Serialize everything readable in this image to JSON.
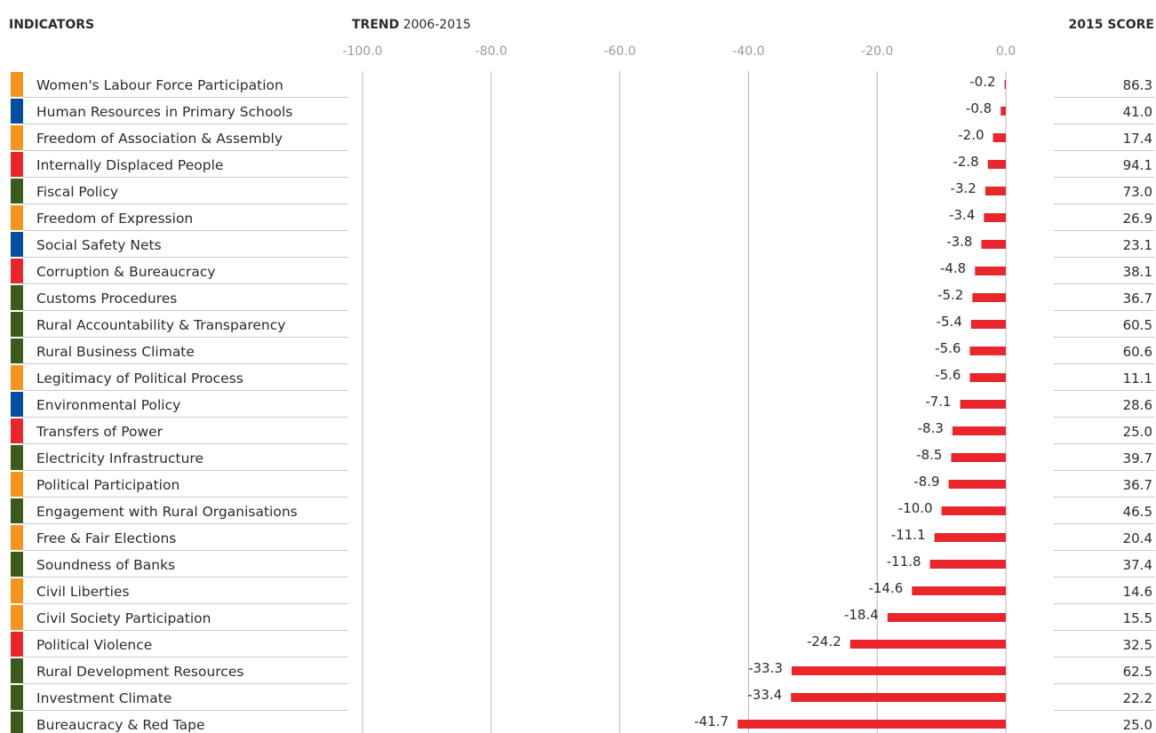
{
  "header": {
    "indicators": "INDICATORS",
    "trend_bold": "TREND",
    "trend_range": "2006-2015",
    "score": "2015 SCORE"
  },
  "colors": {
    "bar": "#e8262b",
    "grid": "#b8b8b8",
    "rowline": "#c8c8c8",
    "category": {
      "orange": "#f7941d",
      "blue": "#034ea2",
      "red": "#e8262b",
      "green": "#3b5a1b"
    }
  },
  "chart_data": {
    "type": "bar",
    "orientation": "horizontal",
    "xlim": [
      -100,
      0
    ],
    "xticks": [
      "-100.0",
      "-80.0",
      "-60.0",
      "-40.0",
      "-20.0",
      "0.0"
    ],
    "grid": true,
    "categories": [
      "Women's Labour Force Participation",
      "Human Resources in Primary Schools",
      "Freedom of Association & Assembly",
      "Internally Displaced People",
      "Fiscal Policy",
      "Freedom of Expression",
      "Social Safety Nets",
      "Corruption & Bureaucracy",
      "Customs Procedures",
      "Rural Accountability & Transparency",
      "Rural Business Climate",
      "Legitimacy of Political Process",
      "Environmental Policy",
      "Transfers of Power",
      "Electricity Infrastructure",
      "Political Participation",
      "Engagement with Rural Organisations",
      "Free & Fair Elections",
      "Soundness of Banks",
      "Civil Liberties",
      "Civil Society Participation",
      "Political Violence",
      "Rural Development Resources",
      "Investment Climate",
      "Bureaucracy & Red Tape"
    ],
    "values": [
      -0.2,
      -0.8,
      -2.0,
      -2.8,
      -3.2,
      -3.4,
      -3.8,
      -4.8,
      -5.2,
      -5.4,
      -5.6,
      -5.6,
      -7.1,
      -8.3,
      -8.5,
      -8.9,
      -10.0,
      -11.1,
      -11.8,
      -14.6,
      -18.4,
      -24.2,
      -33.3,
      -33.4,
      -41.7
    ],
    "value_labels": [
      "-0.2",
      "-0.8",
      "-2.0",
      "-2.8",
      "-3.2",
      "-3.4",
      "-3.8",
      "-4.8",
      "-5.2",
      "-5.4",
      "-5.6",
      "-5.6",
      "-7.1",
      "-8.3",
      "-8.5",
      "-8.9",
      "-10.0",
      "-11.1",
      "-11.8",
      "-14.6",
      "-18.4",
      "-24.2",
      "-33.3",
      "-33.4",
      "-41.7"
    ],
    "scores": [
      "86.3",
      "41.0",
      "17.4",
      "94.1",
      "73.0",
      "26.9",
      "23.1",
      "38.1",
      "36.7",
      "60.5",
      "60.6",
      "11.1",
      "28.6",
      "25.0",
      "39.7",
      "36.7",
      "46.5",
      "20.4",
      "37.4",
      "14.6",
      "15.5",
      "32.5",
      "62.5",
      "22.2",
      "25.0"
    ],
    "category_colors": [
      "orange",
      "blue",
      "orange",
      "red",
      "green",
      "orange",
      "blue",
      "red",
      "green",
      "green",
      "green",
      "orange",
      "blue",
      "red",
      "green",
      "orange",
      "green",
      "orange",
      "green",
      "orange",
      "orange",
      "red",
      "green",
      "green",
      "green"
    ]
  }
}
